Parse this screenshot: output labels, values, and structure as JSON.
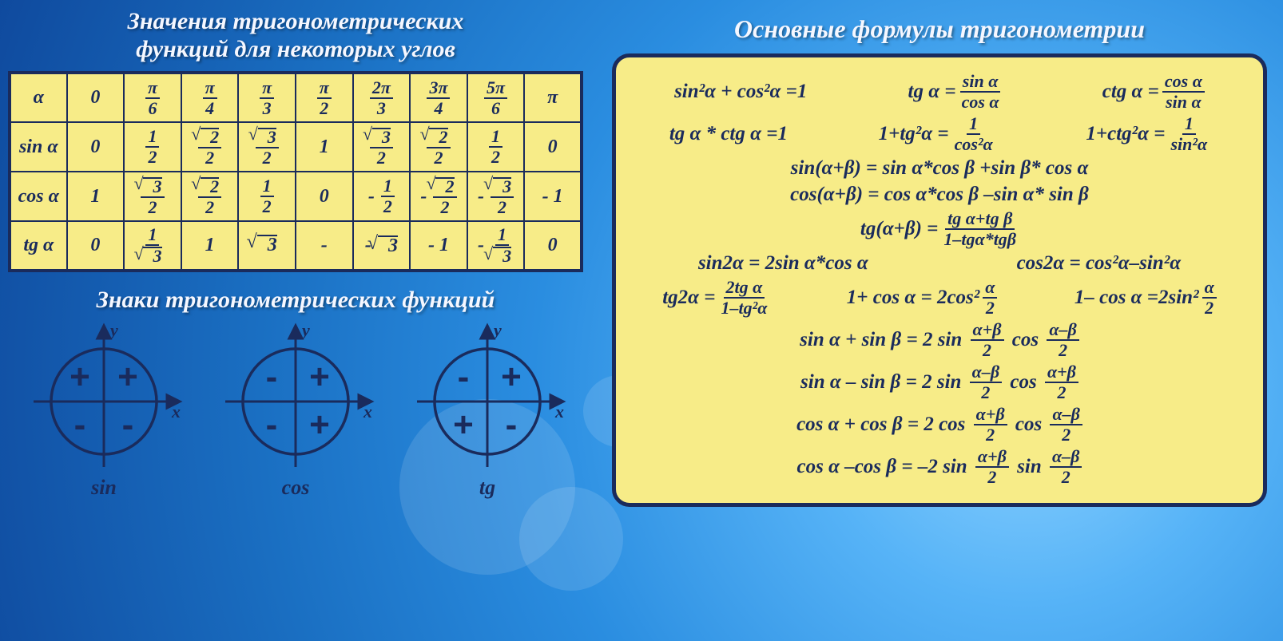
{
  "colors": {
    "bg_cell": "#f7ec88",
    "border": "#1a2b5c",
    "text": "#1a2b5c",
    "heading": "#f5f7ff"
  },
  "titles": {
    "values": "Значения тригонометрических\nфункций для некоторых углов",
    "signs": "Знаки тригонометрических функций",
    "formulas": "Основные формулы тригонометрии"
  },
  "table": {
    "header": [
      "α",
      "0",
      "π/6",
      "π/4",
      "π/3",
      "π/2",
      "2π/3",
      "3π/4",
      "5π/6",
      "π"
    ],
    "rows": [
      {
        "label": "sin α",
        "cells": [
          "0",
          "1/2",
          "√2/2",
          "√3/2",
          "1",
          "√3/2",
          "√2/2",
          "1/2",
          "0"
        ]
      },
      {
        "label": "cos α",
        "cells": [
          "1",
          "√3/2",
          "√2/2",
          "1/2",
          "0",
          "-1/2",
          "-√2/2",
          "-√3/2",
          "-1"
        ]
      },
      {
        "label": "tg α",
        "cells": [
          "0",
          "1/√3",
          "1",
          "√3",
          "-",
          "-√3",
          "- 1",
          "-1/√3",
          "0"
        ]
      }
    ]
  },
  "signs": [
    {
      "fn": "sin",
      "q": [
        "+",
        "+",
        "-",
        "-"
      ]
    },
    {
      "fn": "cos",
      "q": [
        "-",
        "+",
        "-",
        "+"
      ]
    },
    {
      "fn": "tg",
      "q": [
        "-",
        "+",
        "+",
        "-"
      ]
    }
  ],
  "axis_labels": {
    "x": "x",
    "y": "y"
  },
  "formulas": {
    "r1": {
      "a": "sin²α + cos²α =1",
      "b_lhs": "tg α =",
      "b_num": "sin α",
      "b_den": "cos α",
      "c_lhs": "ctg α =",
      "c_num": "cos α",
      "c_den": "sin α"
    },
    "r2": {
      "a": "tg α * ctg α =1",
      "b_lhs": "1+tg²α =",
      "b_num": "1",
      "b_den": "cos²α",
      "c_lhs": "1+ctg²α =",
      "c_num": "1",
      "c_den": "sin²α"
    },
    "r3": "sin(α+β) = sin α*cos β +sin β* cos α",
    "r4": "cos(α+β) = cos α*cos β –sin α* sin β",
    "r5": {
      "lhs": "tg(α+β) =",
      "num": "tg α+tg β",
      "den": "1–tgα*tgβ"
    },
    "r6": {
      "a": "sin2α = 2sin α*cos α",
      "b": "cos2α = cos²α–sin²α"
    },
    "r7": {
      "a_lhs": "tg2α =",
      "a_num": "2tg α",
      "a_den": "1–tg²α",
      "b_lhs": "1+ cos α = 2cos²",
      "b_num": "α",
      "b_den": "2",
      "c_lhs": "1– cos α =2sin²",
      "c_num": "α",
      "c_den": "2"
    },
    "r8": {
      "lhs": "sin α + sin β = 2 sin",
      "n1": "α+β",
      "d1": "2",
      "mid": "cos",
      "n2": "α–β",
      "d2": "2"
    },
    "r9": {
      "lhs": "sin α – sin β = 2 sin",
      "n1": "α–β",
      "d1": "2",
      "mid": "cos",
      "n2": "α+β",
      "d2": "2"
    },
    "r10": {
      "lhs": "cos α + cos β = 2 cos",
      "n1": "α+β",
      "d1": "2",
      "mid": "cos",
      "n2": "α–β",
      "d2": "2"
    },
    "r11": {
      "lhs": "cos α –cos β = –2 sin",
      "n1": "α+β",
      "d1": "2",
      "mid": "sin",
      "n2": "α–β",
      "d2": "2"
    }
  }
}
